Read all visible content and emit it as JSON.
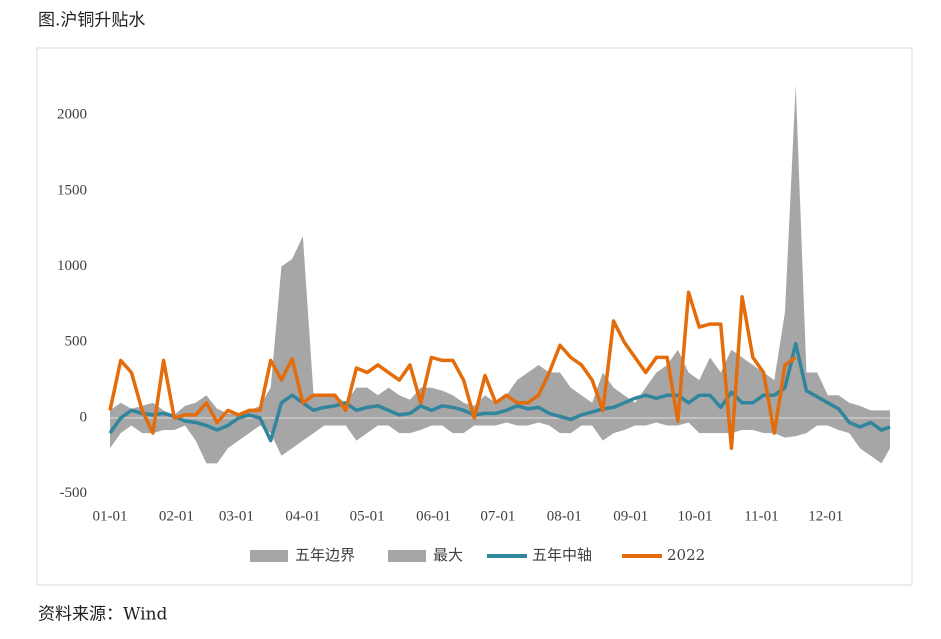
{
  "chart_data": {
    "type": "line",
    "title": "图.沪铜升贴水",
    "source": "资料来源：Wind",
    "x": [
      0,
      5,
      10,
      15,
      20,
      25,
      30,
      35,
      40,
      45,
      50,
      55,
      60,
      65,
      70,
      75,
      80,
      85,
      90,
      95,
      100,
      105,
      110,
      115,
      120,
      125,
      130,
      135,
      140,
      145,
      150,
      155,
      160,
      165,
      170,
      175,
      180,
      185,
      190,
      195,
      200,
      205,
      210,
      215,
      220,
      225,
      230,
      235,
      240,
      245,
      250,
      255,
      260,
      265,
      270,
      275,
      280,
      285,
      290,
      295,
      300,
      305,
      310,
      315,
      320,
      325,
      330,
      335,
      340,
      345,
      350,
      355,
      360,
      364
    ],
    "xlim": [
      0,
      364
    ],
    "xticks": [
      {
        "value": 0,
        "label": "01-01"
      },
      {
        "value": 31,
        "label": "02-01"
      },
      {
        "value": 59,
        "label": "03-01"
      },
      {
        "value": 90,
        "label": "04-01"
      },
      {
        "value": 120,
        "label": "05-01"
      },
      {
        "value": 151,
        "label": "06-01"
      },
      {
        "value": 181,
        "label": "07-01"
      },
      {
        "value": 212,
        "label": "08-01"
      },
      {
        "value": 243,
        "label": "09-01"
      },
      {
        "value": 273,
        "label": "10-01"
      },
      {
        "value": 304,
        "label": "11-01"
      },
      {
        "value": 334,
        "label": "12-01"
      }
    ],
    "ylim": [
      -575,
      2265
    ],
    "yticks": [
      -500,
      0,
      500,
      1000,
      1500,
      2000
    ],
    "series": [
      {
        "name": "五年边界",
        "kind": "area",
        "color": "#a6a6a6",
        "values": [
          -200,
          -100,
          -50,
          -100,
          -100,
          -80,
          -80,
          -50,
          -150,
          -300,
          -300,
          -200,
          -150,
          -100,
          -50,
          -100,
          -250,
          -200,
          -150,
          -100,
          -50,
          -50,
          -50,
          -150,
          -100,
          -50,
          -50,
          -100,
          -100,
          -80,
          -50,
          -50,
          -100,
          -100,
          -50,
          -50,
          -50,
          -30,
          -50,
          -50,
          -30,
          -50,
          -100,
          -100,
          -50,
          -50,
          -150,
          -100,
          -80,
          -50,
          -50,
          -30,
          -50,
          -50,
          -30,
          -100,
          -100,
          -100,
          -100,
          -80,
          -80,
          -100,
          -100,
          -130,
          -120,
          -100,
          -50,
          -50,
          -80,
          -100,
          -200,
          -250,
          -300,
          -200
        ]
      },
      {
        "name": "最大",
        "kind": "area",
        "color": "#a6a6a6",
        "values": [
          50,
          100,
          60,
          80,
          100,
          50,
          20,
          80,
          100,
          150,
          60,
          30,
          20,
          50,
          80,
          200,
          1000,
          1050,
          1200,
          150,
          150,
          150,
          100,
          200,
          200,
          150,
          200,
          150,
          120,
          200,
          200,
          180,
          150,
          100,
          80,
          150,
          100,
          150,
          250,
          300,
          350,
          300,
          300,
          200,
          150,
          100,
          300,
          200,
          150,
          100,
          200,
          300,
          350,
          450,
          300,
          250,
          400,
          300,
          450,
          400,
          350,
          300,
          250,
          700,
          2200,
          300,
          300,
          150,
          150,
          100,
          80,
          50,
          50,
          50
        ]
      },
      {
        "name": "五年中轴",
        "kind": "line",
        "color": "#31859c",
        "values": [
          -100,
          0,
          50,
          30,
          20,
          30,
          10,
          -20,
          -30,
          -50,
          -80,
          -50,
          0,
          20,
          0,
          -150,
          100,
          150,
          100,
          50,
          70,
          80,
          100,
          50,
          70,
          80,
          50,
          20,
          30,
          80,
          50,
          80,
          70,
          50,
          20,
          30,
          30,
          50,
          80,
          60,
          70,
          30,
          10,
          -10,
          20,
          40,
          60,
          70,
          100,
          130,
          150,
          130,
          150,
          150,
          100,
          150,
          150,
          70,
          170,
          100,
          100,
          150,
          150,
          200,
          490,
          180,
          140,
          100,
          60,
          -30,
          -60,
          -30,
          -80,
          -60
        ]
      },
      {
        "name": "2022",
        "kind": "line",
        "color": "#e46c0a",
        "values": [
          50,
          380,
          300,
          50,
          -100,
          380,
          0,
          20,
          20,
          100,
          -30,
          50,
          20,
          50,
          50,
          380,
          250,
          390,
          100,
          150,
          150,
          150,
          50,
          330,
          300,
          350,
          300,
          250,
          350,
          100,
          400,
          380,
          380,
          250,
          0,
          280,
          100,
          150,
          100,
          100,
          150,
          300,
          480,
          400,
          350,
          250,
          50,
          640,
          500,
          400,
          300,
          400,
          400,
          -20,
          830,
          600,
          620,
          620,
          -200,
          800,
          400,
          300,
          -100,
          350,
          400,
          null,
          null,
          null,
          null,
          null,
          null,
          null,
          null,
          null
        ]
      }
    ]
  }
}
